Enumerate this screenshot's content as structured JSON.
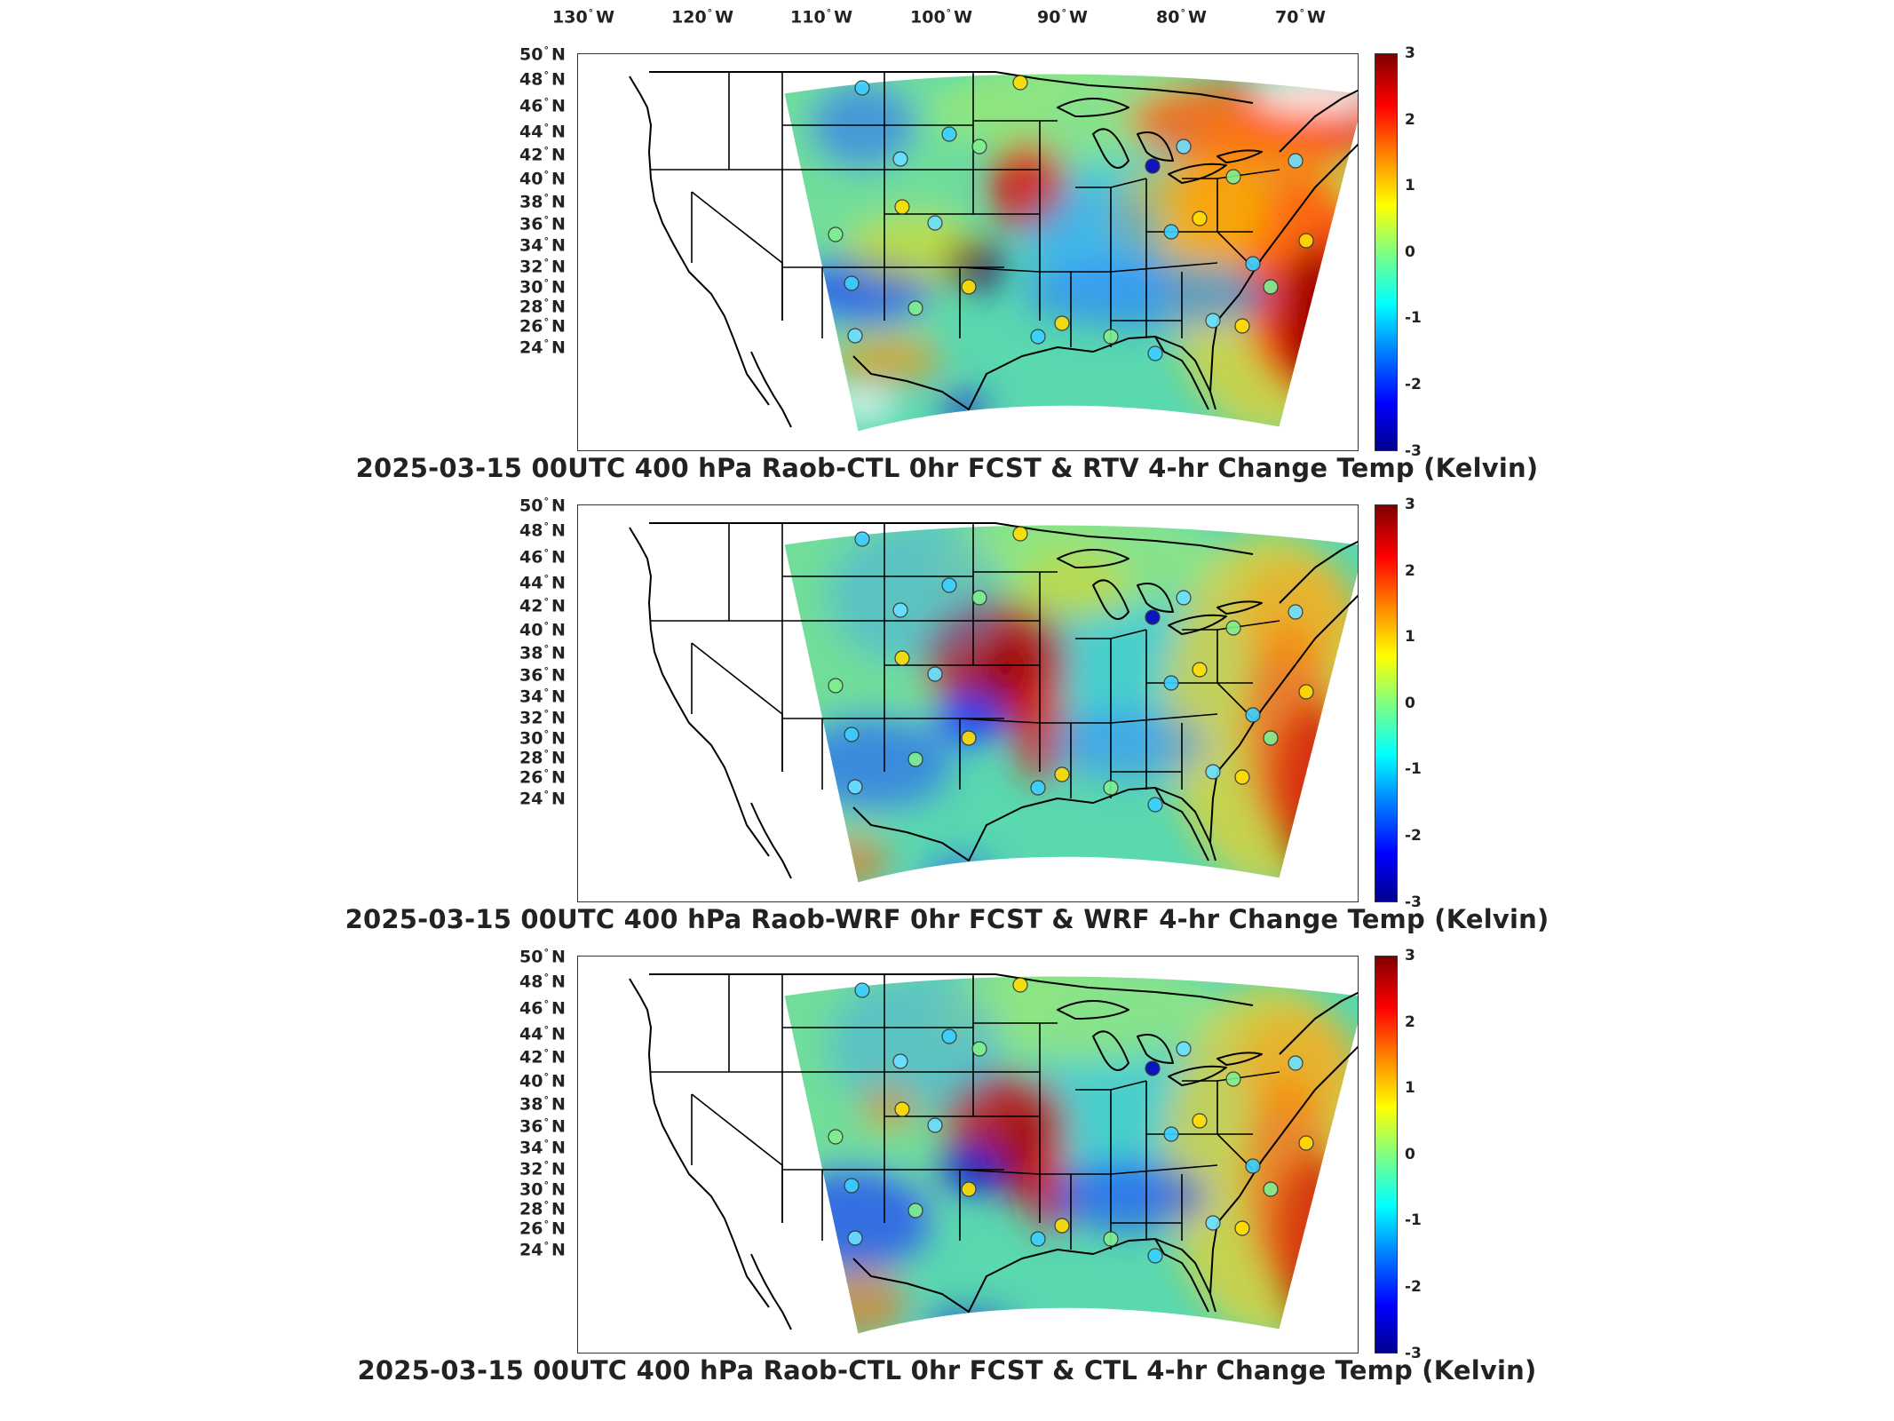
{
  "lon_labels": [
    "130",
    "120",
    "110",
    "100",
    "90",
    "80",
    "70"
  ],
  "lon_hemisphere": "W",
  "lat_labels": [
    "50",
    "48",
    "46",
    "44",
    "42",
    "40",
    "38",
    "36",
    "34",
    "32",
    "30",
    "28",
    "26",
    "24"
  ],
  "lat_hemisphere": "N",
  "degree_symbol": "°",
  "colorbar": {
    "ticks": [
      "3",
      "2",
      "1",
      "0",
      "-1",
      "-2",
      "-3"
    ],
    "range": [
      -3,
      3
    ],
    "colormap": "jet"
  },
  "panels": [
    {
      "title": "2025-03-15 00UTC 400 hPa Raob-CTL 0hr FCST & RTV 4-hr Change Temp (Kelvin)"
    },
    {
      "title": "2025-03-15 00UTC 400 hPa Raob-WRF 0hr FCST & WRF 4-hr Change Temp (Kelvin)"
    },
    {
      "title": "2025-03-15 00UTC 400 hPa Raob-CTL 0hr FCST & CTL 4-hr Change Temp (Kelvin)"
    }
  ],
  "colors": {
    "land_outline": "#000000",
    "no_data": "#ffffff"
  }
}
